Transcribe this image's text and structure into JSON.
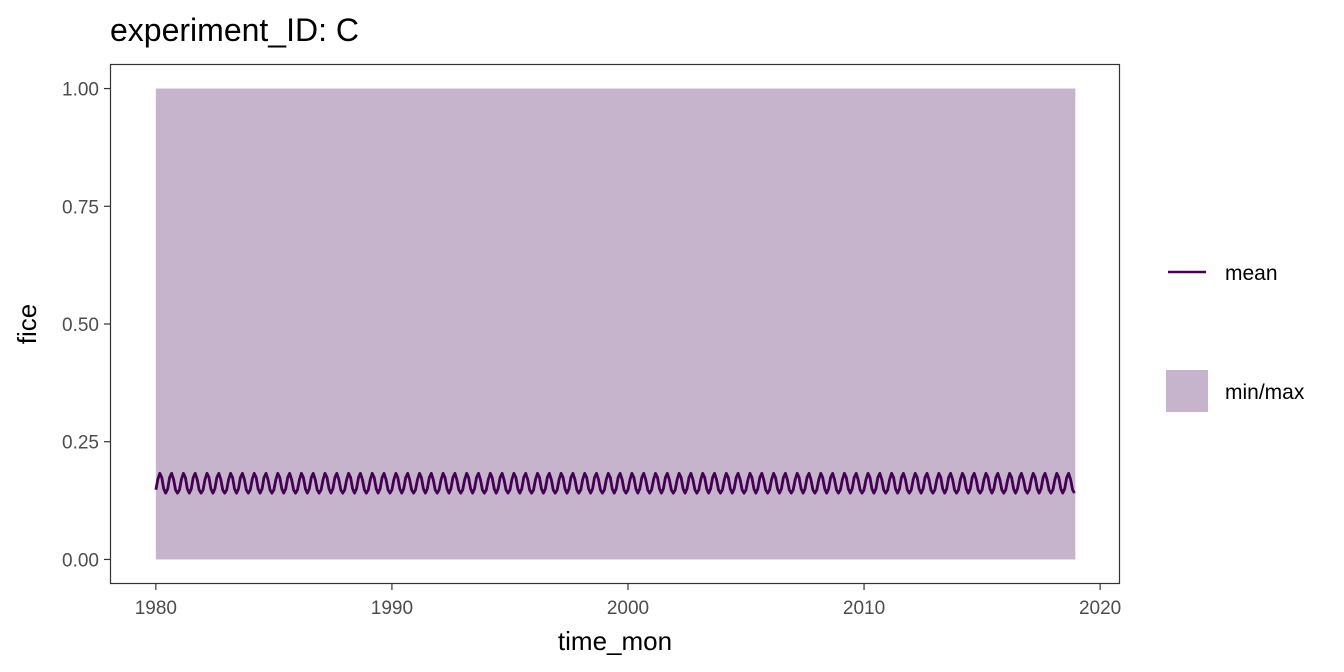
{
  "chart_data": {
    "type": "area",
    "title": "experiment_ID: C",
    "xlabel": "time_mon",
    "ylabel": "fice",
    "xlim": [
      1978.1,
      2020.8
    ],
    "ylim": [
      -0.05,
      1.05
    ],
    "x_ticks": [
      1980,
      1990,
      2000,
      2010,
      2020
    ],
    "x_tick_labels": [
      "1980",
      "1990",
      "2000",
      "2010",
      "2020"
    ],
    "y_ticks": [
      0,
      0.25,
      0.5,
      0.75,
      1.0
    ],
    "y_tick_labels": [
      "0.00",
      "0.25",
      "0.50",
      "0.75",
      "1.00"
    ],
    "grid": false,
    "legend_position": "right",
    "series": [
      {
        "name": "mean",
        "kind": "line",
        "color": "#440154",
        "x_range": [
          1980.0,
          2018.95
        ],
        "months": 468,
        "annual_cycle": [
          0.148,
          0.17,
          0.183,
          0.174,
          0.15,
          0.141,
          0.15,
          0.174,
          0.183,
          0.17,
          0.148,
          0.141
        ]
      },
      {
        "name": "min/max",
        "kind": "ribbon",
        "color": "#c6b3cc",
        "x_range": [
          1980.0,
          2018.95
        ],
        "ymin": 0.0,
        "ymax": 1.0
      }
    ]
  }
}
